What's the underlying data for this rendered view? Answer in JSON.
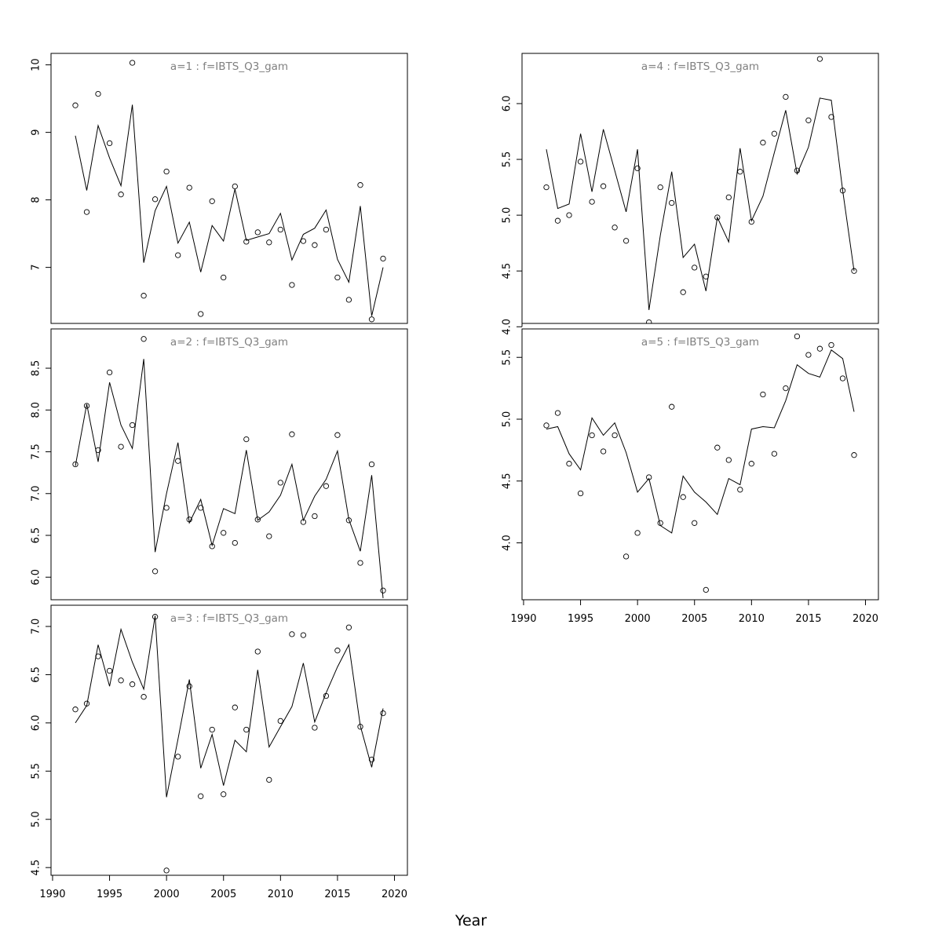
{
  "figure": {
    "xlabel": "Year"
  },
  "chart_data": [
    {
      "type": "line",
      "title": "a=1 : f=IBTS_Q3_gam",
      "xlim": [
        1992,
        2019
      ],
      "ylim": [
        6.17,
        10.17
      ],
      "xticks": [],
      "yticks": [
        7,
        8,
        9,
        10
      ],
      "x": [
        1992,
        1993,
        1994,
        1995,
        1996,
        1997,
        1998,
        1999,
        2000,
        2001,
        2002,
        2003,
        2004,
        2005,
        2006,
        2007,
        2008,
        2009,
        2010,
        2011,
        2012,
        2013,
        2014,
        2015,
        2016,
        2017,
        2018,
        2019
      ],
      "series": [
        {
          "kind": "points",
          "values": [
            9.4,
            7.82,
            9.57,
            8.84,
            8.08,
            10.03,
            6.58,
            8.01,
            8.42,
            7.18,
            8.18,
            6.31,
            7.98,
            6.85,
            8.2,
            7.38,
            7.52,
            7.37,
            7.56,
            6.74,
            7.39,
            7.33,
            7.56,
            6.85,
            6.52,
            8.22,
            6.23,
            7.13
          ]
        },
        {
          "kind": "line",
          "values": [
            8.95,
            8.14,
            9.1,
            8.62,
            8.21,
            9.41,
            7.07,
            7.84,
            8.2,
            7.36,
            7.67,
            6.93,
            7.62,
            7.39,
            8.16,
            7.4,
            7.45,
            7.5,
            7.8,
            7.11,
            7.49,
            7.58,
            7.85,
            7.12,
            6.78,
            7.91,
            6.28,
            7.0
          ]
        }
      ]
    },
    {
      "type": "line",
      "title": "a=2 : f=IBTS_Q3_gam",
      "xlim": [
        1992,
        2019
      ],
      "ylim": [
        5.73,
        8.97
      ],
      "xticks": [],
      "yticks": [
        6.0,
        6.5,
        7.0,
        7.5,
        8.0,
        8.5
      ],
      "x": [
        1992,
        1993,
        1994,
        1995,
        1996,
        1997,
        1998,
        1999,
        2000,
        2001,
        2002,
        2003,
        2004,
        2005,
        2006,
        2007,
        2008,
        2009,
        2010,
        2011,
        2012,
        2013,
        2014,
        2015,
        2016,
        2017,
        2018,
        2019
      ],
      "series": [
        {
          "kind": "points",
          "values": [
            7.35,
            8.05,
            7.52,
            8.45,
            7.56,
            7.82,
            8.85,
            6.07,
            6.83,
            7.39,
            6.69,
            6.83,
            6.37,
            6.53,
            6.41,
            7.65,
            6.69,
            6.49,
            7.13,
            7.71,
            6.66,
            6.73,
            7.09,
            7.7,
            6.68,
            6.17,
            7.35,
            5.84
          ]
        },
        {
          "kind": "line",
          "values": [
            7.33,
            8.07,
            7.38,
            8.33,
            7.82,
            7.54,
            8.61,
            6.3,
            7.0,
            7.61,
            6.65,
            6.93,
            6.38,
            6.82,
            6.76,
            7.52,
            6.68,
            6.78,
            6.98,
            7.35,
            6.68,
            6.97,
            7.17,
            7.51,
            6.69,
            6.31,
            7.22,
            5.75
          ]
        }
      ]
    },
    {
      "type": "line",
      "title": "a=3 : f=IBTS_Q3_gam",
      "xlim": [
        1992,
        2019
      ],
      "ylim": [
        4.42,
        7.22
      ],
      "xticks": [
        1990,
        1995,
        2000,
        2005,
        2010,
        2015,
        2020
      ],
      "yticks": [
        4.5,
        5.0,
        5.5,
        6.0,
        6.5,
        7.0
      ],
      "x": [
        1992,
        1993,
        1994,
        1995,
        1996,
        1997,
        1998,
        1999,
        2000,
        2001,
        2002,
        2003,
        2004,
        2005,
        2006,
        2007,
        2008,
        2009,
        2010,
        2011,
        2012,
        2013,
        2014,
        2015,
        2016,
        2017,
        2018,
        2019
      ],
      "series": [
        {
          "kind": "points",
          "values": [
            6.14,
            6.2,
            6.69,
            6.54,
            6.44,
            6.4,
            6.27,
            7.1,
            4.47,
            5.65,
            6.38,
            5.24,
            5.93,
            5.26,
            6.16,
            5.93,
            6.74,
            5.41,
            6.02,
            6.92,
            6.91,
            5.95,
            6.28,
            6.75,
            6.99,
            5.96,
            5.62,
            6.1
          ]
        },
        {
          "kind": "line",
          "values": [
            6.0,
            6.18,
            6.81,
            6.38,
            6.97,
            6.63,
            6.35,
            7.11,
            5.23,
            5.83,
            6.45,
            5.53,
            5.88,
            5.35,
            5.82,
            5.7,
            6.55,
            5.75,
            5.96,
            6.17,
            6.62,
            6.01,
            6.31,
            6.58,
            6.81,
            5.97,
            5.54,
            6.15
          ]
        }
      ]
    },
    {
      "type": "line",
      "title": "a=4 : f=IBTS_Q3_gam",
      "xlim": [
        1992,
        2019
      ],
      "ylim": [
        4.03,
        6.45
      ],
      "xticks": [],
      "yticks": [
        4.0,
        4.5,
        5.0,
        5.5,
        6.0
      ],
      "x": [
        1992,
        1993,
        1994,
        1995,
        1996,
        1997,
        1998,
        1999,
        2000,
        2001,
        2002,
        2003,
        2004,
        2005,
        2006,
        2007,
        2008,
        2009,
        2010,
        2011,
        2012,
        2013,
        2014,
        2015,
        2016,
        2017,
        2018,
        2019
      ],
      "series": [
        {
          "kind": "points",
          "values": [
            5.25,
            4.95,
            5.0,
            5.48,
            5.12,
            5.26,
            4.89,
            4.77,
            5.42,
            4.04,
            5.25,
            5.11,
            4.31,
            4.53,
            4.45,
            4.98,
            5.16,
            5.39,
            4.94,
            5.65,
            5.73,
            6.06,
            5.4,
            5.85,
            6.4,
            5.88,
            5.22,
            4.5
          ]
        },
        {
          "kind": "line",
          "values": [
            5.59,
            5.06,
            5.1,
            5.73,
            5.21,
            5.77,
            5.4,
            5.03,
            5.59,
            4.15,
            4.82,
            5.39,
            4.62,
            4.74,
            4.32,
            4.98,
            4.76,
            5.6,
            4.95,
            5.17,
            5.56,
            5.94,
            5.37,
            5.61,
            6.05,
            6.03,
            5.22,
            4.5
          ]
        }
      ]
    },
    {
      "type": "line",
      "title": "a=5 : f=IBTS_Q3_gam",
      "xlim": [
        1992,
        2019
      ],
      "ylim": [
        3.54,
        5.73
      ],
      "xticks": [
        1990,
        1995,
        2000,
        2005,
        2010,
        2015,
        2020
      ],
      "yticks": [
        4.0,
        4.5,
        5.0,
        5.5
      ],
      "x": [
        1992,
        1993,
        1994,
        1995,
        1996,
        1997,
        1998,
        1999,
        2000,
        2001,
        2002,
        2003,
        2004,
        2005,
        2006,
        2007,
        2008,
        2009,
        2010,
        2011,
        2012,
        2013,
        2014,
        2015,
        2016,
        2017,
        2018,
        2019
      ],
      "series": [
        {
          "kind": "points",
          "values": [
            4.95,
            5.05,
            4.64,
            4.4,
            4.87,
            4.74,
            4.87,
            3.89,
            4.08,
            4.53,
            4.16,
            5.1,
            4.37,
            4.16,
            3.62,
            4.77,
            4.67,
            4.43,
            4.64,
            5.2,
            4.72,
            5.25,
            5.67,
            5.52,
            5.57,
            5.6,
            5.33,
            4.71
          ]
        },
        {
          "kind": "line",
          "values": [
            4.92,
            4.94,
            4.72,
            4.59,
            5.01,
            4.87,
            4.97,
            4.73,
            4.41,
            4.52,
            4.14,
            4.08,
            4.54,
            4.41,
            4.33,
            4.23,
            4.52,
            4.47,
            4.92,
            4.94,
            4.93,
            5.15,
            5.44,
            5.37,
            5.34,
            5.56,
            5.49,
            5.06
          ]
        }
      ]
    }
  ]
}
